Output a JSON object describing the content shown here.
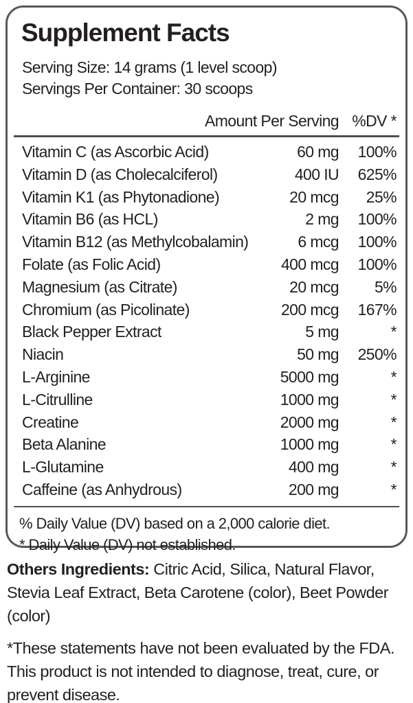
{
  "panel": {
    "title": "Supplement Facts",
    "serving_size": "Serving Size: 14 grams (1 level scoop)",
    "servings_per_container": "Servings Per Container: 30 scoops",
    "columns": {
      "amount": "Amount Per Serving",
      "dv": "%DV *"
    },
    "rows": [
      {
        "name": "Vitamin C (as Ascorbic Acid)",
        "amount": "60 mg",
        "dv": "100%"
      },
      {
        "name": "Vitamin D (as Cholecalciferol)",
        "amount": "400 IU",
        "dv": "625%"
      },
      {
        "name": "Vitamin K1 (as Phytonadione)",
        "amount": "20 mcg",
        "dv": "25%"
      },
      {
        "name": "Vitamin B6 (as HCL)",
        "amount": "2 mg",
        "dv": "100%"
      },
      {
        "name": "Vitamin B12 (as Methylcobalamin)",
        "amount": "6 mcg",
        "dv": "100%"
      },
      {
        "name": "Folate (as Folic Acid)",
        "amount": "400 mcg",
        "dv": "100%"
      },
      {
        "name": "Magnesium (as Citrate)",
        "amount": "20 mcg",
        "dv": "5%"
      },
      {
        "name": "Chromium (as Picolinate)",
        "amount": "200 mcg",
        "dv": "167%"
      },
      {
        "name": "Black Pepper Extract",
        "amount": "5 mg",
        "dv": "*"
      },
      {
        "name": "Niacin",
        "amount": "50 mg",
        "dv": "250%"
      },
      {
        "name": "L-Arginine",
        "amount": "5000 mg",
        "dv": "*"
      },
      {
        "name": "L-Citrulline",
        "amount": "1000 mg",
        "dv": "*"
      },
      {
        "name": "Creatine",
        "amount": "2000 mg",
        "dv": "*"
      },
      {
        "name": "Beta Alanine",
        "amount": "1000 mg",
        "dv": "*"
      },
      {
        "name": "L-Glutamine",
        "amount": "400 mg",
        "dv": "*"
      },
      {
        "name": "Caffeine (as Anhydrous)",
        "amount": "200 mg",
        "dv": "*"
      }
    ],
    "footnotes": [
      "% Daily Value (DV) based on a 2,000 calorie diet.",
      "* Daily Value (DV) not established."
    ]
  },
  "below": {
    "other_ingredients_label": "Others Ingredients:",
    "other_ingredients_text": " Citric Acid, Silica, Natural Flavor, Stevia Leaf Extract, Beta Carotene (color), Beet Powder (color)",
    "disclaimer": "*These statements have not been evaluated by the FDA. This product is not intended to diagnose, treat, cure, or prevent disease."
  },
  "colors": {
    "text": "#231f20",
    "border": "#55575b",
    "separator": "#4c4e52",
    "background": "#ffffff"
  }
}
